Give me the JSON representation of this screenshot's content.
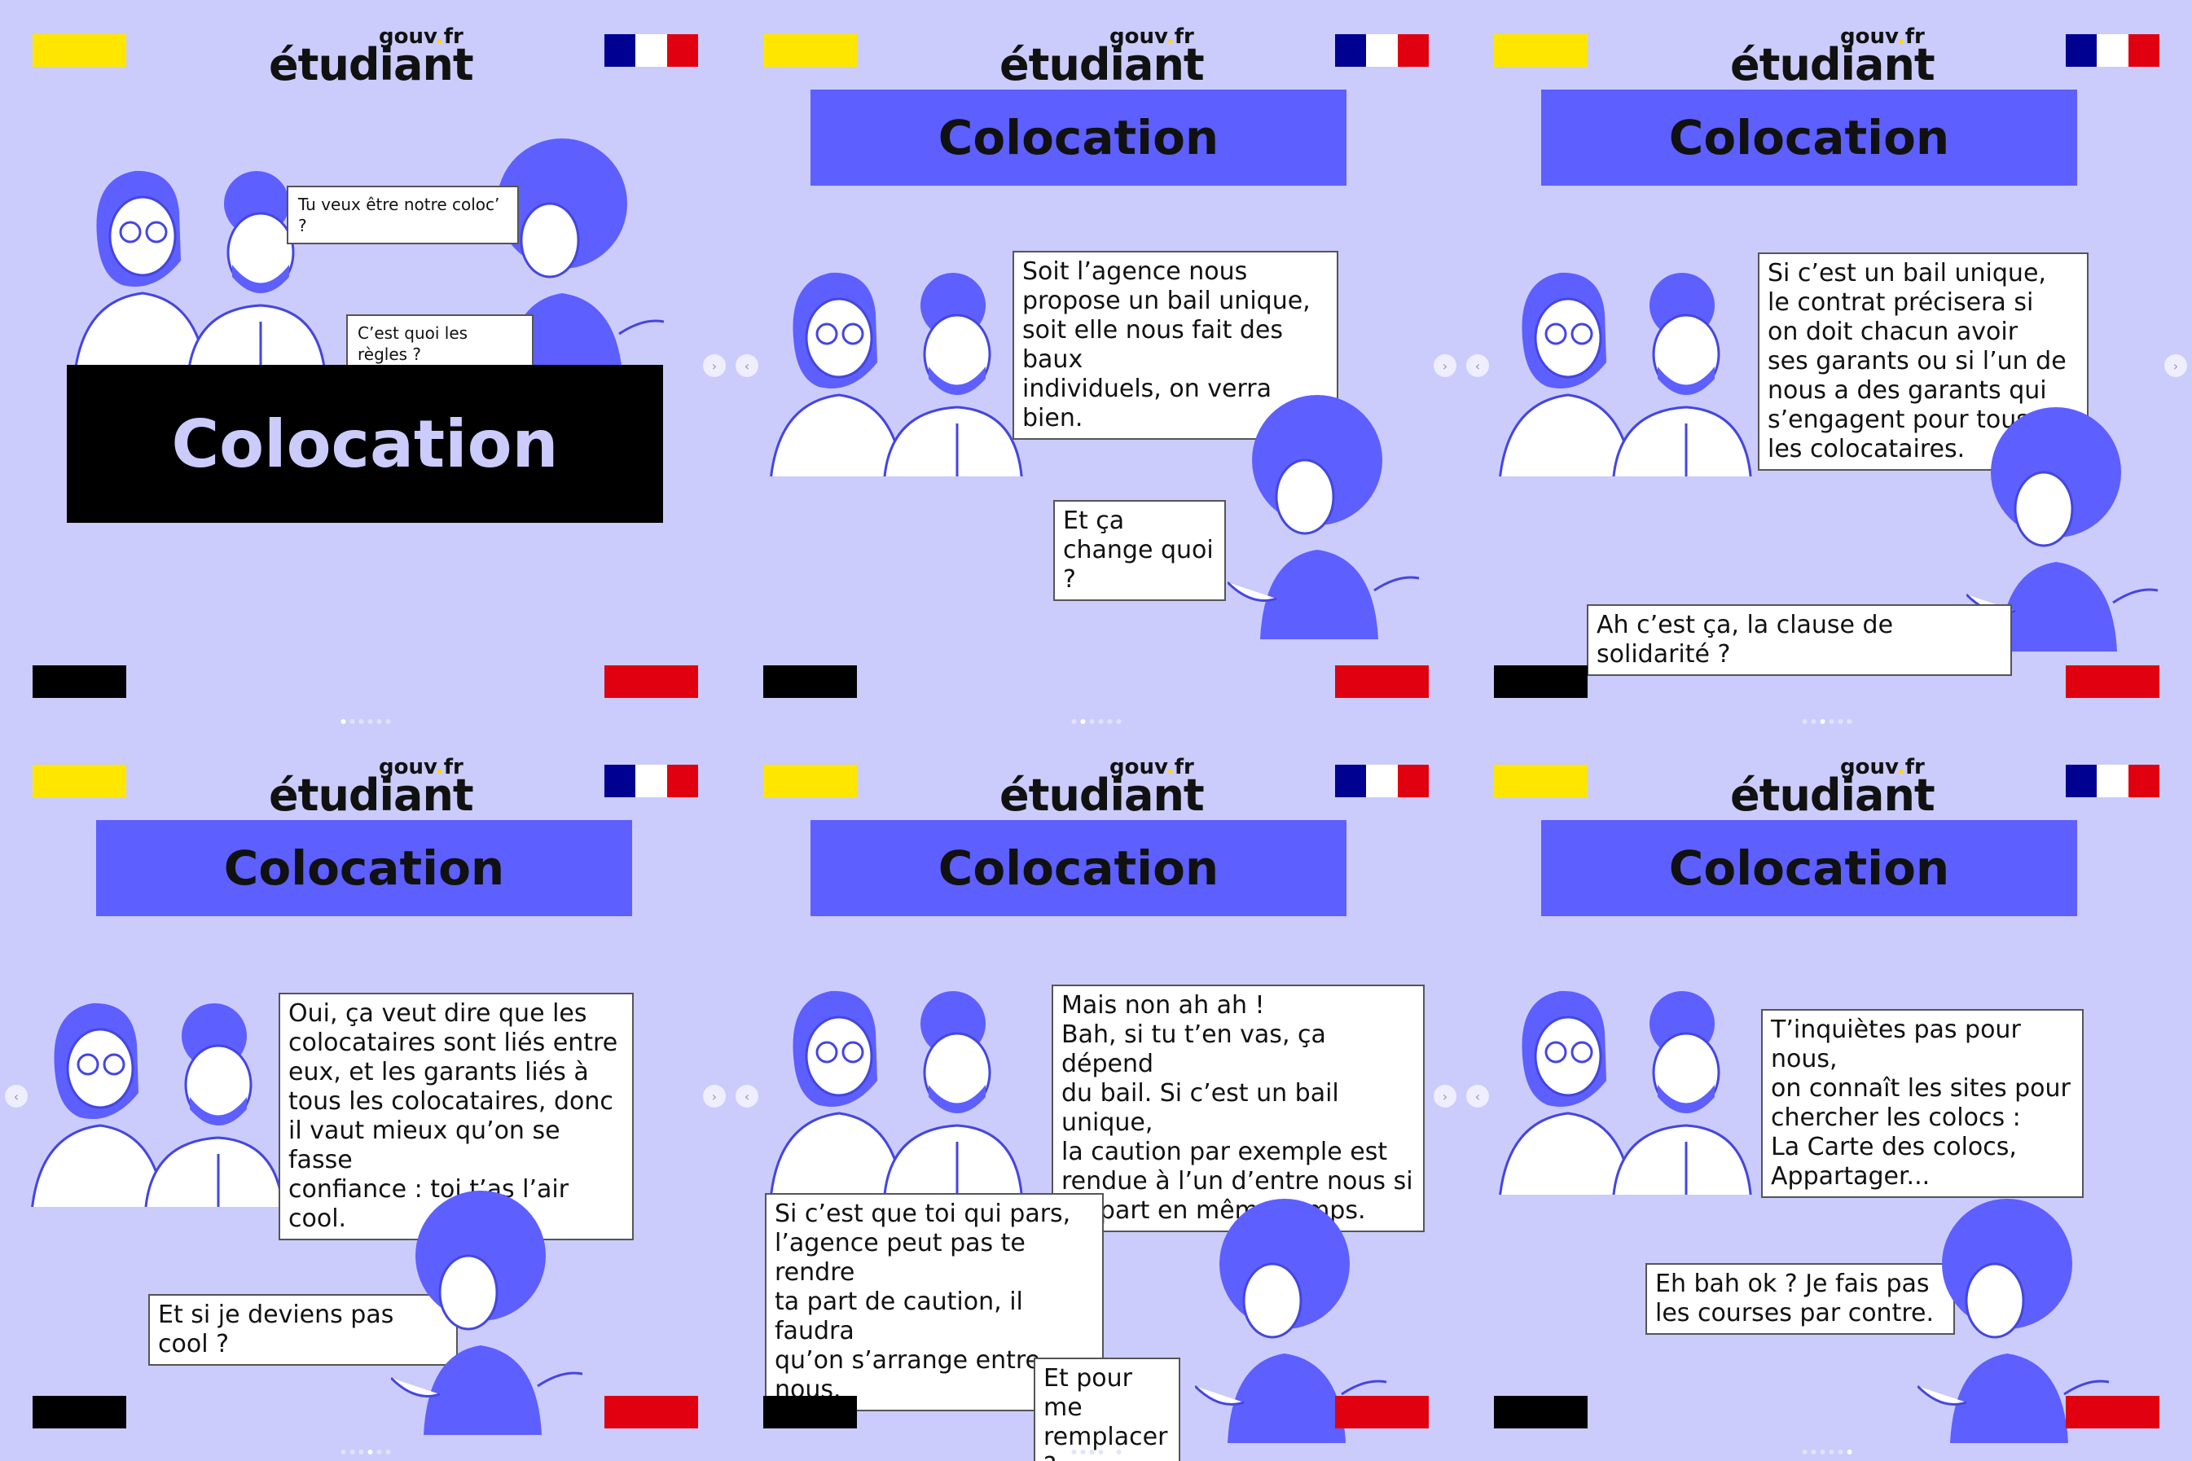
{
  "brand": {
    "logo_main": "étudiant",
    "logo_gouv": "gouv",
    "logo_dot": ".",
    "logo_fr": "fr"
  },
  "colors": {
    "background": "#cbccfb",
    "accent": "#5d5fff",
    "yellow": "#ffe600",
    "red": "#e1000f",
    "blue": "#000091"
  },
  "icons": [
    "marianne-flag-icon",
    "chevron-left-icon",
    "chevron-right-icon"
  ],
  "slides": [
    {
      "title": "Colocation",
      "bubbles": [
        "Tu veux être notre coloc’ ?",
        "C’est quoi les règles ?"
      ]
    },
    {
      "title": "Colocation",
      "bubbles": [
        "Soit l’agence nous\npropose un bail unique,\nsoit elle nous fait des baux\nindividuels, on verra bien.",
        "Et ça change quoi ?"
      ]
    },
    {
      "title": "Colocation",
      "bubbles": [
        "Si c’est un bail unique,\nle contrat précisera si\non doit chacun avoir\nses garants ou si l’un de\nnous a des garants qui\ns’engagent pour tous\nles colocataires.",
        "Ah c’est ça, la clause de solidarité ?"
      ]
    },
    {
      "title": "Colocation",
      "bubbles": [
        "Oui, ça veut dire que les\ncolocataires sont liés entre\neux, et les garants liés à\ntous les colocataires, donc\nil vaut mieux qu’on se fasse\nconfiance : toi t’as l’air cool.",
        "Et si je deviens pas cool ?"
      ]
    },
    {
      "title": "Colocation",
      "bubbles": [
        "Mais non ah ah !\nBah, si tu t’en vas, ça dépend\ndu bail. Si c’est un bail unique,\nla caution par exemple est\nrendue à l’un d’entre nous si\non part en même temps.",
        "Si c’est que toi qui pars,\nl’agence peut pas te rendre\nta part de caution, il faudra\nqu’on s’arrange entre nous.",
        "Et pour me\nremplacer ?"
      ]
    },
    {
      "title": "Colocation",
      "bubbles": [
        "T’inquiètes pas pour nous,\non connaît les sites pour\nchercher les colocs :\nLa Carte des colocs,\nAppartager...",
        "Eh bah ok ? Je fais pas\nles courses par contre."
      ]
    }
  ]
}
